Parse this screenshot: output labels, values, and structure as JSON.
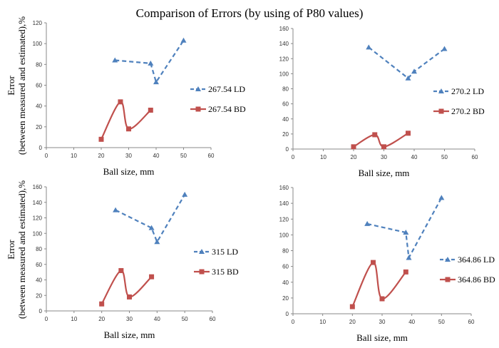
{
  "figure": {
    "title": "Comparison of Errors (by using of P80 values)"
  },
  "colors": {
    "ld": "#4F81BD",
    "bd": "#C0504D",
    "axis": "#888888"
  },
  "chart_data": [
    {
      "type": "line",
      "xlabel": "Ball size, mm",
      "ylabel": "Error (between measured and estimated),%",
      "xlim": [
        0,
        60
      ],
      "xticks": [
        "0",
        "10",
        "20",
        "30",
        "40",
        "50",
        "60"
      ],
      "ylim": [
        0,
        120
      ],
      "yticks": [
        "0",
        "20",
        "40",
        "60",
        "80",
        "100",
        "120"
      ],
      "legend_position": "right",
      "series": [
        {
          "name": "267.54 LD",
          "marker": "triangle",
          "dash": true,
          "points": [
            [
              25,
              84
            ],
            [
              38,
              81
            ],
            [
              40,
              63
            ],
            [
              50,
              103
            ]
          ]
        },
        {
          "name": "267.54 BD",
          "marker": "square",
          "dash": false,
          "points": [
            [
              20,
              8
            ],
            [
              27,
              44
            ],
            [
              30,
              18
            ],
            [
              38,
              36
            ]
          ]
        }
      ]
    },
    {
      "type": "line",
      "xlabel": "Ball size, mm",
      "ylabel": "",
      "xlim": [
        0,
        60
      ],
      "xticks": [
        "0",
        "10",
        "20",
        "30",
        "40",
        "50",
        "60"
      ],
      "ylim": [
        0,
        160
      ],
      "yticks": [
        "0",
        "20",
        "40",
        "60",
        "80",
        "100",
        "120",
        "140",
        "160"
      ],
      "legend_position": "right",
      "series": [
        {
          "name": "270.2 LD",
          "marker": "triangle",
          "dash": true,
          "points": [
            [
              25,
              135
            ],
            [
              38,
              94
            ],
            [
              40,
              103
            ],
            [
              50,
              133
            ]
          ]
        },
        {
          "name": "270.2 BD",
          "marker": "square",
          "dash": false,
          "points": [
            [
              20,
              3
            ],
            [
              27,
              19
            ],
            [
              30,
              3
            ],
            [
              38,
              21
            ]
          ]
        }
      ]
    },
    {
      "type": "line",
      "xlabel": "Ball size, mm",
      "ylabel": "Error (between measured and estimated),%",
      "xlim": [
        0,
        60
      ],
      "xticks": [
        "0",
        "10",
        "20",
        "30",
        "40",
        "50",
        "60"
      ],
      "ylim": [
        0,
        160
      ],
      "yticks": [
        "0",
        "20",
        "40",
        "60",
        "80",
        "100",
        "120",
        "140",
        "160"
      ],
      "legend_position": "right",
      "series": [
        {
          "name": "315 LD",
          "marker": "triangle",
          "dash": true,
          "points": [
            [
              25,
              130
            ],
            [
              38,
              107
            ],
            [
              40,
              89
            ],
            [
              50,
              150
            ]
          ]
        },
        {
          "name": "315 BD",
          "marker": "square",
          "dash": false,
          "points": [
            [
              20,
              9
            ],
            [
              27,
              52
            ],
            [
              30,
              18
            ],
            [
              38,
              44
            ]
          ]
        }
      ]
    },
    {
      "type": "line",
      "xlabel": "Ball size, mm",
      "ylabel": "",
      "xlim": [
        0,
        60
      ],
      "xticks": [
        "0",
        "10",
        "20",
        "30",
        "40",
        "50",
        "60"
      ],
      "ylim": [
        0,
        160
      ],
      "yticks": [
        "0",
        "20",
        "40",
        "60",
        "80",
        "100",
        "120",
        "140",
        "160"
      ],
      "legend_position": "right",
      "series": [
        {
          "name": "364.86 LD",
          "marker": "triangle",
          "dash": true,
          "points": [
            [
              25,
              114
            ],
            [
              38,
              103
            ],
            [
              39,
              71
            ],
            [
              50,
              147
            ]
          ]
        },
        {
          "name": "364.86 BD",
          "marker": "square",
          "dash": false,
          "points": [
            [
              20,
              9
            ],
            [
              27,
              65
            ],
            [
              30,
              19
            ],
            [
              38,
              53
            ]
          ]
        }
      ]
    }
  ]
}
